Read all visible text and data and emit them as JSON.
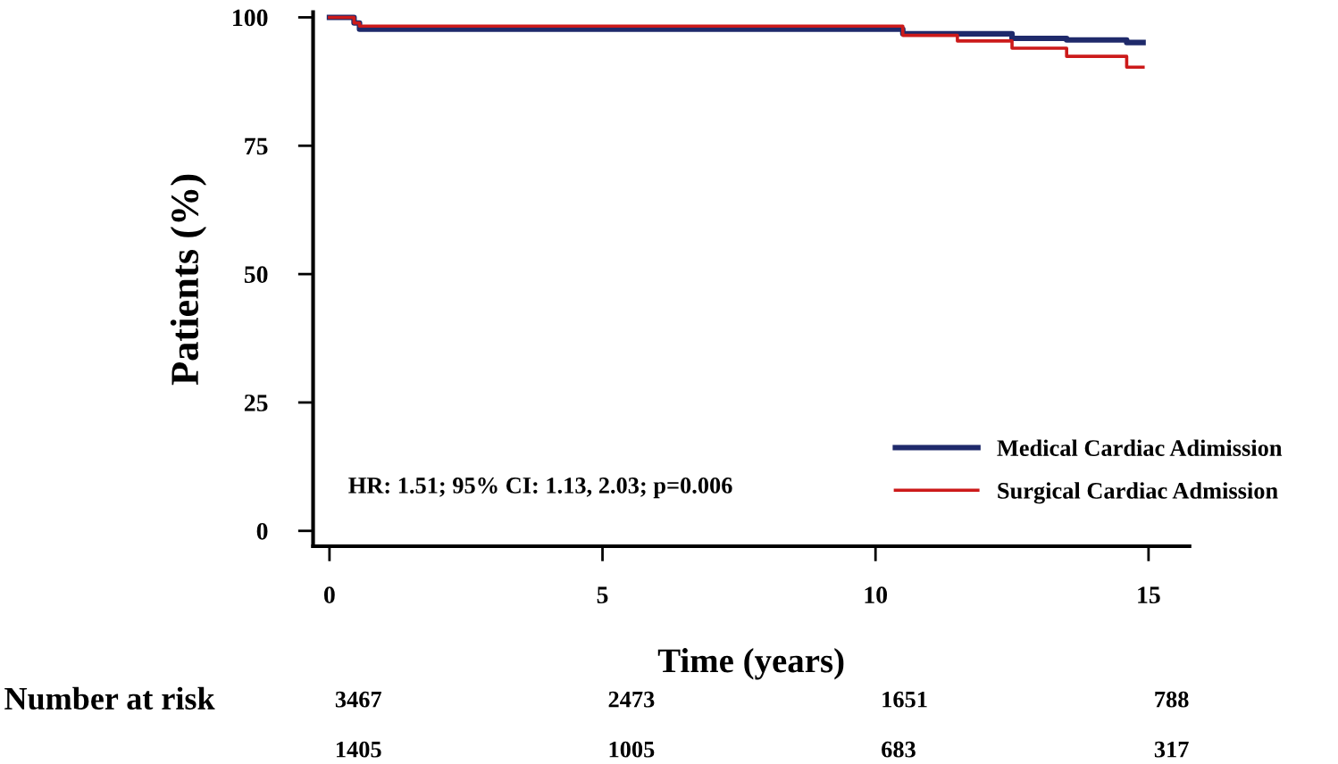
{
  "chart_data": {
    "type": "step",
    "xlabel": "Time (years)",
    "ylabel": "Patients (%)",
    "xlim": [
      -0.3,
      15.75
    ],
    "ylim": [
      -3,
      101
    ],
    "xticks": [
      0,
      5,
      10,
      15
    ],
    "yticks": [
      0,
      25,
      50,
      75,
      100
    ],
    "grid": false,
    "legend": "bottom right",
    "line_style": "solid",
    "marker": "none",
    "series": [
      {
        "name": "Medical Cardiac Adimission",
        "color": "#1f2a6b",
        "x": [
          0,
          0.45,
          0.55,
          10.5,
          12.5,
          13.5,
          14.6,
          14.9
        ],
        "values": [
          100,
          98.9,
          97.7,
          96.8,
          95.9,
          95.6,
          95.1,
          95.1
        ]
      },
      {
        "name": "Surgical Cardiac Admission",
        "color": "#cc1a1a",
        "x": [
          0,
          0.45,
          0.55,
          10.5,
          11.5,
          12.5,
          13.5,
          14.6,
          14.9
        ],
        "values": [
          100,
          98.9,
          98.3,
          96.5,
          95.4,
          94.0,
          92.4,
          90.3,
          90.3
        ]
      }
    ],
    "annotations": [
      "HR: 1.51; 95% CI: 1.13, 2.03; p=0.006",
      "Number at risk",
      "3467",
      "2473",
      "1651",
      "788",
      "1405",
      "1005",
      "683",
      "317"
    ]
  }
}
